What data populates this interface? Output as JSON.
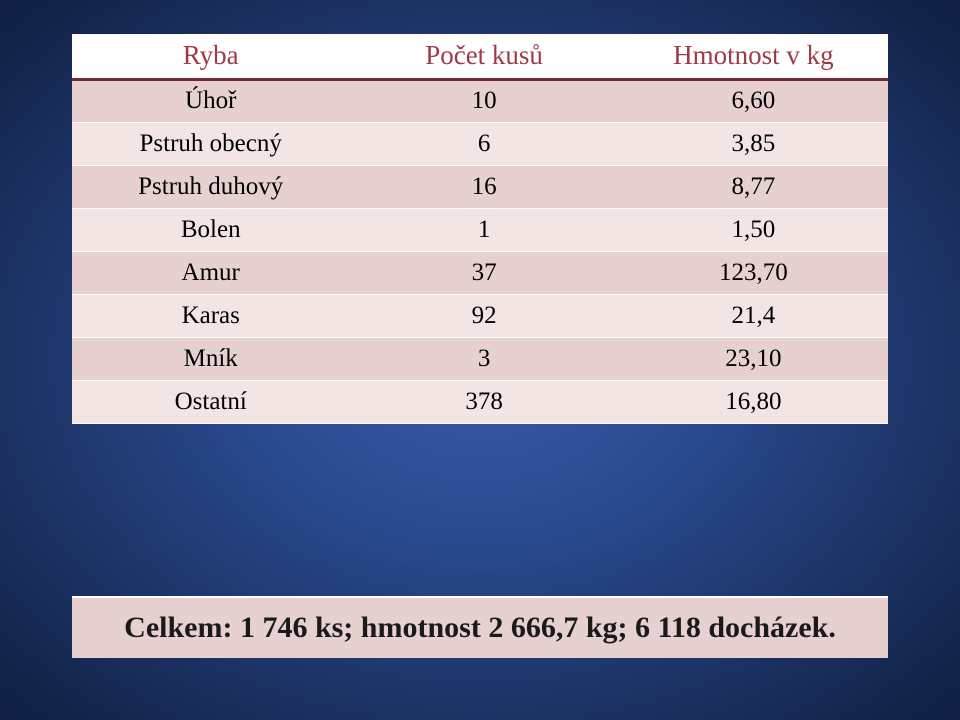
{
  "table": {
    "columns": [
      "Ryba",
      "Počet kusů",
      "Hmotnost v kg"
    ],
    "rows": [
      [
        "Úhoř",
        "10",
        "6,60"
      ],
      [
        "Pstruh obecný",
        "6",
        "3,85"
      ],
      [
        "Pstruh duhový",
        "16",
        "8,77"
      ],
      [
        "Bolen",
        "1",
        "1,50"
      ],
      [
        "Amur",
        "37",
        "123,70"
      ],
      [
        "Karas",
        "92",
        "21,4"
      ],
      [
        "Mník",
        "3",
        "23,10"
      ],
      [
        "Ostatní",
        "378",
        "16,80"
      ]
    ],
    "header_bg": "#ffffff",
    "header_text": "#9e3b48",
    "row_even_bg": "#e7d0d0",
    "row_odd_bg": "#f2e5e4",
    "cell_text": "#000000",
    "cell_fontsize": 25,
    "header_fontsize": 27
  },
  "summary": {
    "text": "Celkem: 1 746 ks; hmotnost 2 666,7 kg; 6 118 docházek.",
    "bg": "#e7d0d0",
    "text_color": "#1a1a1a",
    "fontsize": 30
  },
  "background": {
    "type": "radial-gradient",
    "center_color": "#3a5ca8",
    "edge_color": "#0f1e42"
  }
}
